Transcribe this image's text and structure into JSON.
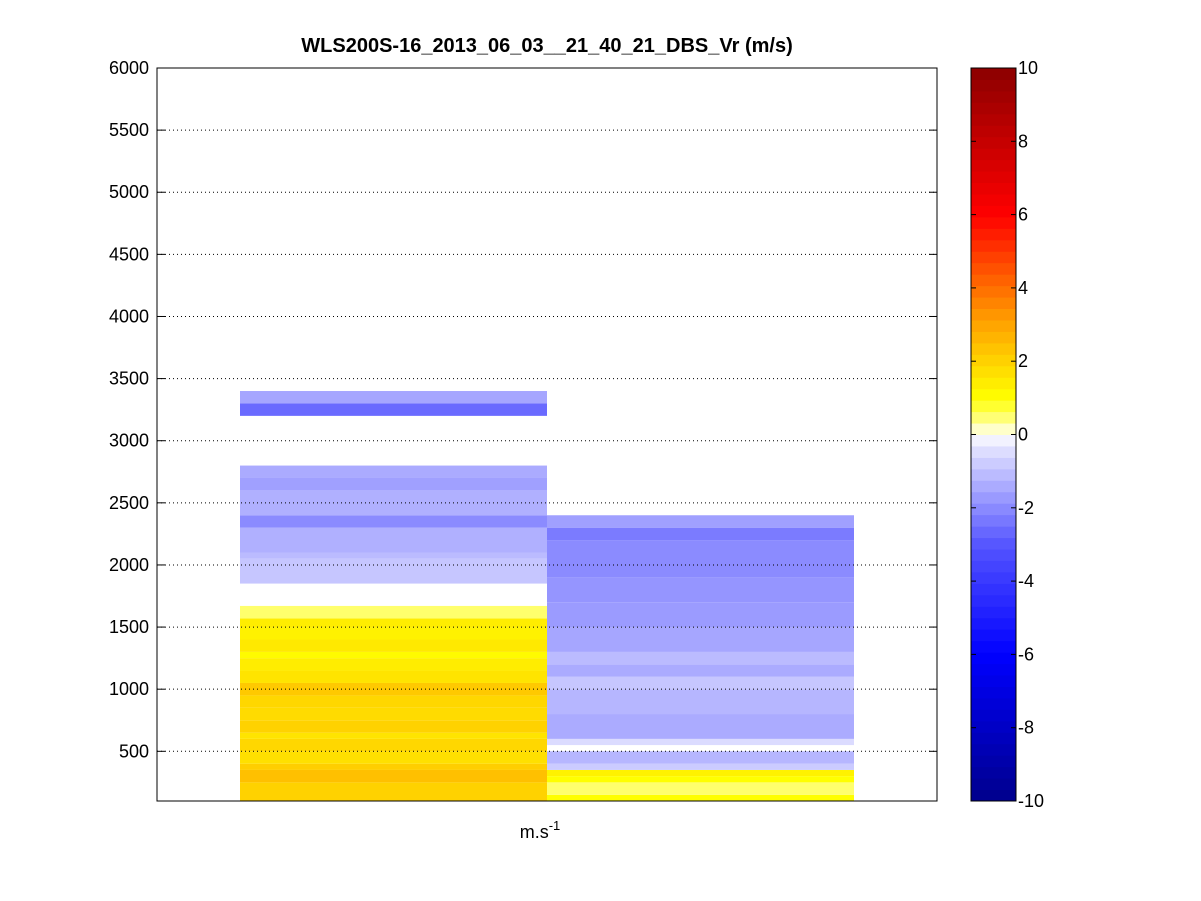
{
  "chart_data": {
    "type": "heatmap",
    "title": "WLS200S-16_2013_06_03__21_40_21_DBS_Vr (m/s)",
    "xlabel": "m.s",
    "xlabel_superscript": "-1",
    "ylabel": "",
    "ylim": [
      100,
      6000
    ],
    "yticks": [
      500,
      1000,
      1500,
      2000,
      2500,
      3000,
      3500,
      4000,
      4500,
      5000,
      5500,
      6000
    ],
    "grid": "y-dotted",
    "colorbar": {
      "range": [
        -10,
        10
      ],
      "ticks": [
        -10,
        -8,
        -6,
        -4,
        -2,
        0,
        2,
        4,
        6,
        8,
        10
      ],
      "colormap": "blue-white-yellow-red",
      "colors": [
        {
          "value": -10,
          "color": "#00008b"
        },
        {
          "value": -6,
          "color": "#0000ff"
        },
        {
          "value": -3,
          "color": "#5555ff"
        },
        {
          "value": -0.3,
          "color": "#e6e6ff"
        },
        {
          "value": 0,
          "color": "#ffffff"
        },
        {
          "value": 0.3,
          "color": "#ffff99"
        },
        {
          "value": 1,
          "color": "#ffff00"
        },
        {
          "value": 3,
          "color": "#ffa500"
        },
        {
          "value": 6,
          "color": "#ff0000"
        },
        {
          "value": 10,
          "color": "#8b0000"
        }
      ]
    },
    "columns": [
      {
        "cells": [
          {
            "y0": 100,
            "y1": 250,
            "v": 2.0
          },
          {
            "y0": 250,
            "y1": 350,
            "v": 2.4
          },
          {
            "y0": 350,
            "y1": 400,
            "v": 2.1
          },
          {
            "y0": 400,
            "y1": 500,
            "v": 1.7
          },
          {
            "y0": 500,
            "y1": 600,
            "v": 1.9
          },
          {
            "y0": 600,
            "y1": 650,
            "v": 1.6
          },
          {
            "y0": 650,
            "y1": 750,
            "v": 2.0
          },
          {
            "y0": 750,
            "y1": 850,
            "v": 1.8
          },
          {
            "y0": 850,
            "y1": 950,
            "v": 1.9
          },
          {
            "y0": 950,
            "y1": 1050,
            "v": 2.2
          },
          {
            "y0": 1050,
            "y1": 1150,
            "v": 1.6
          },
          {
            "y0": 1150,
            "y1": 1250,
            "v": 1.4
          },
          {
            "y0": 1250,
            "y1": 1300,
            "v": 1.1
          },
          {
            "y0": 1300,
            "y1": 1400,
            "v": 1.5
          },
          {
            "y0": 1400,
            "y1": 1500,
            "v": 1.3
          },
          {
            "y0": 1500,
            "y1": 1570,
            "v": 1.4
          },
          {
            "y0": 1570,
            "y1": 1670,
            "v": 0.5
          },
          {
            "y0": 1850,
            "y1": 2050,
            "v": -0.9
          },
          {
            "y0": 2050,
            "y1": 2100,
            "v": -1.1
          },
          {
            "y0": 2100,
            "y1": 2300,
            "v": -1.3
          },
          {
            "y0": 2300,
            "y1": 2400,
            "v": -2.0
          },
          {
            "y0": 2400,
            "y1": 2600,
            "v": -1.3
          },
          {
            "y0": 2600,
            "y1": 2700,
            "v": -1.6
          },
          {
            "y0": 2700,
            "y1": 2800,
            "v": -1.4
          },
          {
            "y0": 3200,
            "y1": 3300,
            "v": -2.6
          },
          {
            "y0": 3300,
            "y1": 3400,
            "v": -1.5
          }
        ]
      },
      {
        "cells": [
          {
            "y0": 100,
            "y1": 150,
            "v": 1.0
          },
          {
            "y0": 150,
            "y1": 250,
            "v": 0.5
          },
          {
            "y0": 250,
            "y1": 300,
            "v": 1.0
          },
          {
            "y0": 300,
            "y1": 350,
            "v": 1.3
          },
          {
            "y0": 350,
            "y1": 400,
            "v": -0.8
          },
          {
            "y0": 400,
            "y1": 500,
            "v": -1.2
          },
          {
            "y0": 550,
            "y1": 600,
            "v": -0.5
          },
          {
            "y0": 600,
            "y1": 800,
            "v": -1.4
          },
          {
            "y0": 800,
            "y1": 1000,
            "v": -1.2
          },
          {
            "y0": 1000,
            "y1": 1100,
            "v": -0.9
          },
          {
            "y0": 1100,
            "y1": 1200,
            "v": -1.4
          },
          {
            "y0": 1200,
            "y1": 1300,
            "v": -1.1
          },
          {
            "y0": 1300,
            "y1": 1500,
            "v": -1.5
          },
          {
            "y0": 1500,
            "y1": 1700,
            "v": -1.7
          },
          {
            "y0": 1700,
            "y1": 1900,
            "v": -1.8
          },
          {
            "y0": 1900,
            "y1": 2200,
            "v": -2.0
          },
          {
            "y0": 2200,
            "y1": 2300,
            "v": -2.3
          },
          {
            "y0": 2300,
            "y1": 2400,
            "v": -1.6
          }
        ]
      }
    ]
  }
}
